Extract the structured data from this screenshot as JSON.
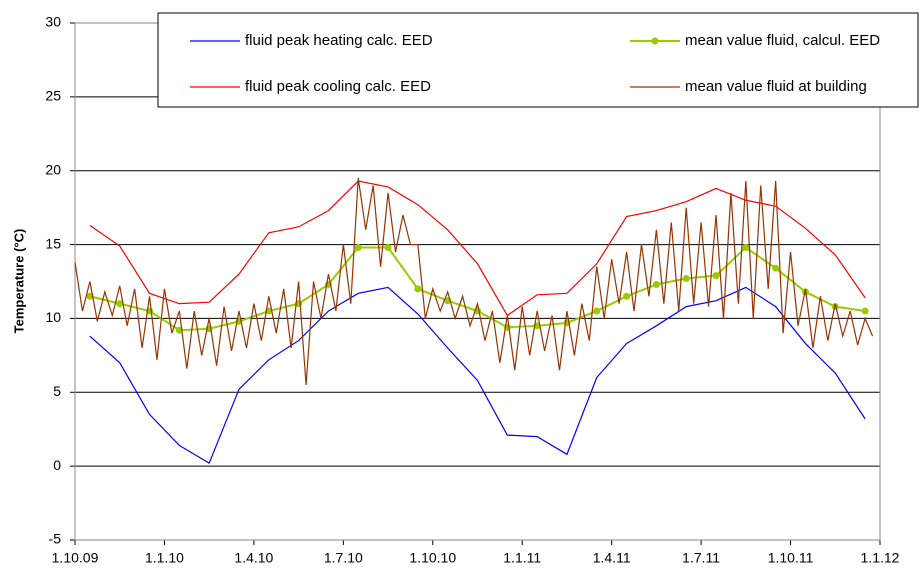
{
  "chart_data": {
    "type": "line",
    "y_label": "Temperature (°C)",
    "xlim": [
      0,
      27
    ],
    "ylim": [
      -5,
      30
    ],
    "xticks": [
      {
        "value": 0,
        "label": "1.10.09"
      },
      {
        "value": 3,
        "label": "1.1.10"
      },
      {
        "value": 6,
        "label": "1.4.10"
      },
      {
        "value": 9,
        "label": "1.7.10"
      },
      {
        "value": 12,
        "label": "1.10.10"
      },
      {
        "value": 15,
        "label": "1.1.11"
      },
      {
        "value": 18,
        "label": "1.4.11"
      },
      {
        "value": 21,
        "label": "1.7.11"
      },
      {
        "value": 24,
        "label": "1.10.11"
      },
      {
        "value": 27,
        "label": "1.1.12"
      }
    ],
    "yticks": [
      -5,
      0,
      5,
      10,
      15,
      20,
      25,
      30
    ],
    "grid": true,
    "legend": "top-right",
    "series": [
      {
        "name": "fluid peak heating calc. EED",
        "color": "#0000ff",
        "marker": false,
        "x": [
          0.5,
          1.5,
          2.5,
          3.5,
          4.5,
          5.5,
          6.5,
          7.5,
          8.5,
          9.5,
          10.5,
          11.5,
          12.5,
          13.5,
          14.5,
          15.5,
          16.5,
          17.5,
          18.5,
          19.5,
          20.5,
          21.5,
          22.5,
          23.5,
          24.5,
          25.5,
          26.5
        ],
        "values": [
          8.8,
          7.0,
          3.5,
          1.4,
          0.2,
          5.2,
          7.2,
          8.5,
          10.5,
          11.7,
          12.1,
          10.3,
          8.0,
          5.8,
          2.1,
          2.0,
          0.8,
          6.0,
          8.3,
          9.5,
          10.8,
          11.2,
          12.1,
          10.8,
          8.3,
          6.3,
          3.2
        ]
      },
      {
        "name": "mean value fluid, calcul. EED",
        "color": "#99cc00",
        "marker": true,
        "x": [
          0.5,
          1.5,
          2.5,
          3.5,
          4.5,
          5.5,
          6.5,
          7.5,
          8.5,
          9.5,
          10.5,
          11.5,
          12.5,
          13.5,
          14.5,
          15.5,
          16.5,
          17.5,
          18.5,
          19.5,
          20.5,
          21.5,
          22.5,
          23.5,
          24.5,
          25.5,
          26.5
        ],
        "values": [
          11.5,
          11,
          10.5,
          9.2,
          9.3,
          9.8,
          10.5,
          11.0,
          12.3,
          14.8,
          14.8,
          12.0,
          11.2,
          10.5,
          9.4,
          9.5,
          9.7,
          10.5,
          11.5,
          12.3,
          12.7,
          12.9,
          14.8,
          13.4,
          11.8,
          10.8,
          10.5
        ]
      },
      {
        "name": "fluid peak cooling calc. EED",
        "color": "#ff0000",
        "marker": false,
        "x": [
          0.5,
          1.5,
          2.5,
          3.5,
          4.5,
          5.5,
          6.5,
          7.5,
          8.5,
          9.5,
          10.5,
          11.5,
          12.5,
          13.5,
          14.5,
          15.5,
          16.5,
          17.5,
          18.5,
          19.5,
          20.5,
          21.5,
          22.5,
          23.5,
          24.5,
          25.5,
          26.5
        ],
        "values": [
          16.3,
          14.9,
          11.7,
          11.0,
          11.1,
          13.0,
          15.8,
          16.2,
          17.3,
          19.3,
          18.9,
          17.7,
          16.0,
          13.7,
          10.2,
          11.6,
          11.7,
          13.7,
          16.9,
          17.3,
          17.9,
          18.8,
          18.0,
          17.6,
          16.1,
          14.3,
          11.4
        ]
      },
      {
        "name": "mean value fluid at building",
        "color": "#993300",
        "marker": false,
        "x": [
          0,
          0.25,
          0.5,
          0.75,
          1,
          1.25,
          1.5,
          1.75,
          2,
          2.25,
          2.5,
          2.75,
          3,
          3.25,
          3.5,
          3.75,
          4,
          4.25,
          4.5,
          4.75,
          5,
          5.25,
          5.5,
          5.75,
          6,
          6.25,
          6.5,
          6.75,
          7,
          7.25,
          7.5,
          7.75,
          8,
          8.25,
          8.5,
          8.75,
          9,
          9.25,
          9.5,
          9.75,
          10,
          10.25,
          10.5,
          10.75,
          11,
          11.25,
          11.5,
          11.75,
          12,
          12.25,
          12.5,
          12.75,
          13,
          13.25,
          13.5,
          13.75,
          14,
          14.25,
          14.5,
          14.75,
          15,
          15.25,
          15.5,
          15.75,
          16,
          16.25,
          16.5,
          16.75,
          17,
          17.25,
          17.5,
          17.75,
          18,
          18.25,
          18.5,
          18.75,
          19,
          19.25,
          19.5,
          19.75,
          20,
          20.25,
          20.5,
          20.75,
          21,
          21.25,
          21.5,
          21.75,
          22,
          22.25,
          22.5,
          22.75,
          23,
          23.25,
          23.5,
          23.75,
          24,
          24.25,
          24.5,
          24.75,
          25,
          25.25,
          25.5,
          25.75,
          26,
          26.25,
          26.5,
          26.75
        ],
        "values": [
          13.8,
          10.5,
          12.5,
          9.8,
          11.8,
          10.2,
          12.2,
          9.5,
          12,
          8,
          11.5,
          7.2,
          12,
          9,
          10.5,
          6.6,
          10.5,
          7.5,
          10,
          6.8,
          10.8,
          7.8,
          10.5,
          8,
          11,
          8.5,
          11.5,
          9,
          12,
          8,
          12.5,
          5.5,
          12.5,
          10,
          13,
          10.5,
          15,
          11,
          19.5,
          16,
          19,
          13.5,
          18.5,
          14.5,
          17,
          15,
          15,
          10,
          12,
          10.5,
          11.8,
          10,
          11.5,
          9.5,
          11,
          8.5,
          10.5,
          7,
          10.2,
          6.5,
          10.8,
          7.5,
          10.5,
          7.8,
          10.2,
          6.5,
          10.5,
          7.5,
          11,
          8.5,
          13.5,
          10,
          14,
          11,
          14.5,
          10.5,
          15,
          11.5,
          16,
          11,
          16.5,
          10.5,
          17.5,
          11,
          16.5,
          10.8,
          17,
          10,
          18.5,
          11,
          19.3,
          10,
          19,
          12,
          19.3,
          9,
          14.5,
          9.5,
          12,
          8,
          11.5,
          8.5,
          11,
          8.8,
          10.5,
          8.2,
          10,
          8.8
        ]
      }
    ]
  }
}
